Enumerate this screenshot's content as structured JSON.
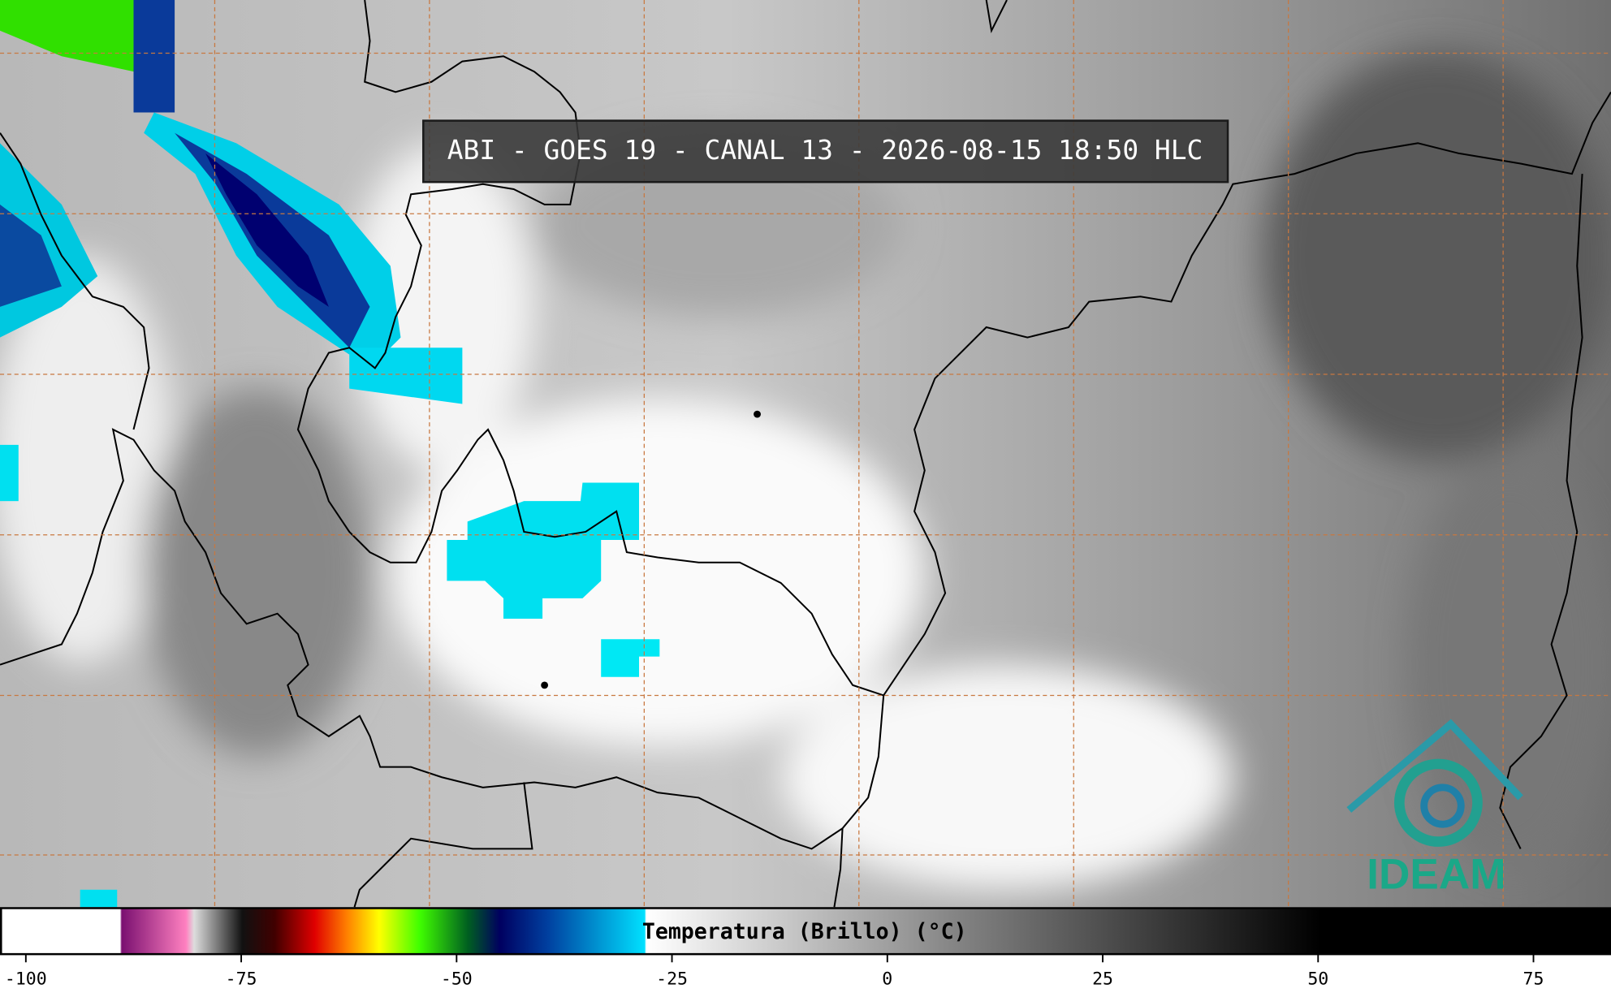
{
  "title": "ABI - GOES 19 - CANAL 13 - 2026-08-15 18:50 HLC",
  "colorbar": {
    "label": "Temperatura (Brillo) (°C)",
    "lim": [
      -103,
      84
    ],
    "ticks": [
      -100,
      -75,
      -50,
      -25,
      0,
      25,
      50,
      75
    ]
  },
  "logo": "IDEAM"
}
